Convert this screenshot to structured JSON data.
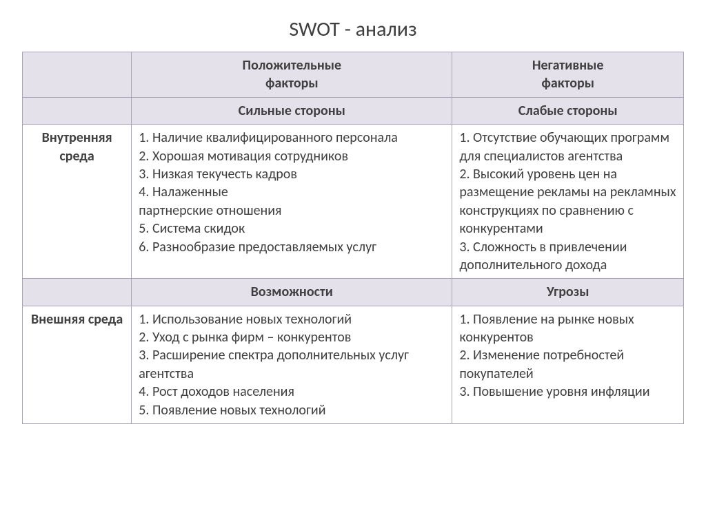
{
  "title": "SWOT - анализ",
  "colors": {
    "border": "#a9a3b8",
    "header_bg": "#e4e1eb",
    "text": "#404040",
    "background": "#ffffff"
  },
  "typography": {
    "title_fontsize_pt": 22,
    "cell_fontsize_pt": 15,
    "font_family": "Calibri"
  },
  "columns": {
    "c1_pct": 16.5,
    "c2_pct": 48.5,
    "c3_pct": 35
  },
  "headers": {
    "positive": "Положительные\nфакторы",
    "negative": "Негативные\nфакторы",
    "strengths": "Сильные стороны",
    "weaknesses": "Слабые стороны",
    "opportunities": "Возможности",
    "threats": "Угрозы"
  },
  "rowlabels": {
    "internal": "Внутренняя среда",
    "external": "Внешняя среда"
  },
  "cells": {
    "strengths": "1. Наличие квалифицированного персонала\n2. Хорошая мотивация сотрудников\n3. Низкая текучесть кадров\n4. Налаженные\nпартнерские отношения\n5. Система скидок\n6. Разнообразие предоставляемых услуг",
    "weaknesses": "1. Отсутствие обучающих программ для специалистов агентства\n2. Высокий уровень цен на размещение рекламы на рекламных конструкциях по сравнению с конкурентами\n3. Сложность в привлечении дополнительного дохода",
    "opportunities": "1. Использование новых технологий\n2. Уход с рынка фирм – конкурентов\n3. Расширение спектра дополнительных услуг агентства\n4. Рост доходов населения\n5. Появление новых технологий",
    "threats": "1. Появление на рынке новых конкурентов\n2. Изменение потребностей покупателей\n3.  Повышение уровня инфляции"
  }
}
